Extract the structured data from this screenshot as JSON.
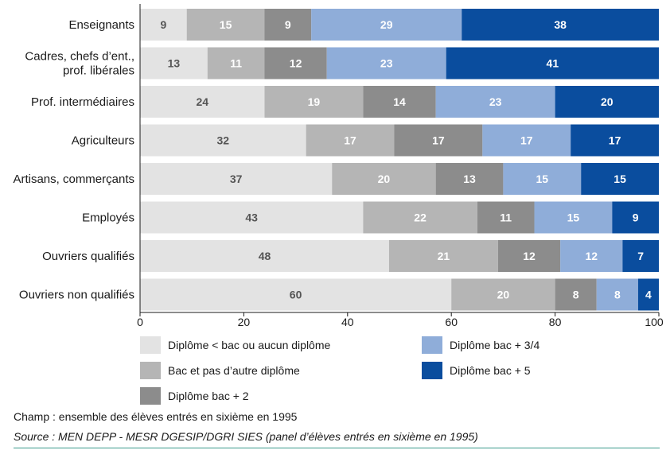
{
  "chart_data": {
    "type": "bar",
    "orientation": "horizontal",
    "stacked": true,
    "categories": [
      "Enseignants",
      [
        "Cadres, chefs d’ent.,",
        "prof. libérales"
      ],
      "Prof. intermédiaires",
      "Agriculteurs",
      "Artisans, commerçants",
      "Employés",
      "Ouvriers qualifiés",
      "Ouvriers non qualifiés"
    ],
    "series": [
      {
        "name": "Diplôme < bac ou aucun diplôme",
        "color": "#e3e3e3",
        "label_color": "#555555",
        "values": [
          9,
          13,
          24,
          32,
          37,
          43,
          48,
          60
        ]
      },
      {
        "name": "Bac et pas d’autre diplôme",
        "color": "#b5b5b5",
        "label_color": "#ffffff",
        "values": [
          15,
          11,
          19,
          17,
          20,
          22,
          21,
          20
        ]
      },
      {
        "name": "Diplôme bac + 2",
        "color": "#8c8c8c",
        "label_color": "#ffffff",
        "values": [
          9,
          12,
          14,
          17,
          13,
          11,
          12,
          8
        ]
      },
      {
        "name": "Diplôme bac + 3/4",
        "color": "#8fadd9",
        "label_color": "#ffffff",
        "values": [
          29,
          23,
          23,
          17,
          15,
          15,
          12,
          8
        ]
      },
      {
        "name": "Diplôme bac + 5",
        "color": "#0a4d9e",
        "label_color": "#ffffff",
        "values": [
          38,
          41,
          20,
          17,
          15,
          9,
          7,
          4
        ]
      }
    ],
    "xlim": [
      0,
      100
    ],
    "xticks": [
      0,
      20,
      40,
      60,
      80,
      100
    ],
    "title": "",
    "xlabel": "",
    "ylabel": "",
    "grid": false,
    "legend_position": "bottom"
  },
  "footer": {
    "note": "Champ : ensemble des élèves entrés en sixième en 1995",
    "source": "Source : MEN DEPP - MESR DGESIP/DGRI SIES (panel d’élèves entrés en sixième en 1995)"
  }
}
